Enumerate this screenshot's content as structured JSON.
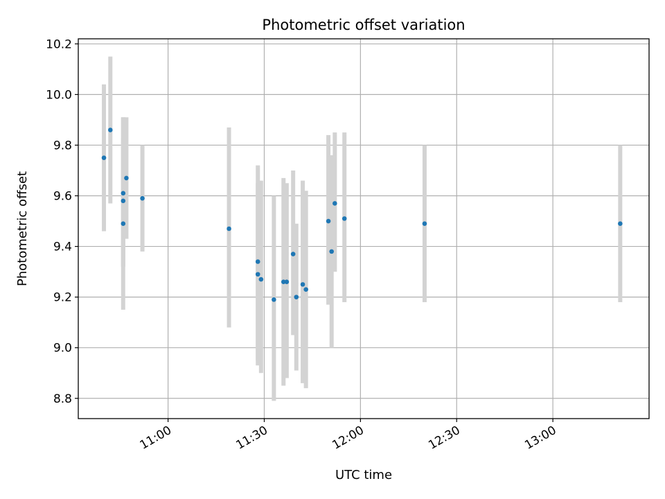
{
  "chart_data": {
    "type": "scatter",
    "title": "Photometric offset variation",
    "xlabel": "UTC time",
    "ylabel": "Photometric offset",
    "x_ticks": [
      "11:00",
      "11:30",
      "12:00",
      "12:30",
      "13:00"
    ],
    "y_ticks": [
      "8.8",
      "9.0",
      "9.2",
      "9.4",
      "9.6",
      "9.8",
      "10.0",
      "10.2"
    ],
    "xlim": [
      "10:32",
      "13:30"
    ],
    "ylim": [
      8.72,
      10.22
    ],
    "grid": true,
    "colors": {
      "point": "#1f77b4",
      "errorbar": "#d3d3d3"
    },
    "points": [
      {
        "x": "10:40",
        "y": 9.75,
        "ylow": 9.46,
        "yhigh": 10.04
      },
      {
        "x": "10:42",
        "y": 9.86,
        "ylow": 9.57,
        "yhigh": 10.15
      },
      {
        "x": "10:46",
        "y": 9.49,
        "ylow": 9.15,
        "yhigh": 9.83
      },
      {
        "x": "10:46",
        "y": 9.61,
        "ylow": 9.32,
        "yhigh": 9.91
      },
      {
        "x": "10:46",
        "y": 9.58,
        "ylow": 9.32,
        "yhigh": 9.91
      },
      {
        "x": "10:47",
        "y": 9.67,
        "ylow": 9.43,
        "yhigh": 9.91
      },
      {
        "x": "10:52",
        "y": 9.59,
        "ylow": 9.38,
        "yhigh": 9.8
      },
      {
        "x": "11:19",
        "y": 9.47,
        "ylow": 9.08,
        "yhigh": 9.87
      },
      {
        "x": "11:28",
        "y": 9.29,
        "ylow": 8.93,
        "yhigh": 9.65
      },
      {
        "x": "11:28",
        "y": 9.34,
        "ylow": 8.95,
        "yhigh": 9.72
      },
      {
        "x": "11:29",
        "y": 9.27,
        "ylow": 8.9,
        "yhigh": 9.66
      },
      {
        "x": "11:33",
        "y": 9.19,
        "ylow": 8.79,
        "yhigh": 9.6
      },
      {
        "x": "11:36",
        "y": 9.26,
        "ylow": 8.85,
        "yhigh": 9.67
      },
      {
        "x": "11:37",
        "y": 9.26,
        "ylow": 8.88,
        "yhigh": 9.65
      },
      {
        "x": "11:39",
        "y": 9.37,
        "ylow": 9.05,
        "yhigh": 9.7
      },
      {
        "x": "11:40",
        "y": 9.2,
        "ylow": 8.91,
        "yhigh": 9.49
      },
      {
        "x": "11:42",
        "y": 9.25,
        "ylow": 8.86,
        "yhigh": 9.66
      },
      {
        "x": "11:43",
        "y": 9.23,
        "ylow": 8.84,
        "yhigh": 9.62
      },
      {
        "x": "11:50",
        "y": 9.5,
        "ylow": 9.17,
        "yhigh": 9.84
      },
      {
        "x": "11:51",
        "y": 9.38,
        "ylow": 9.0,
        "yhigh": 9.76
      },
      {
        "x": "11:52",
        "y": 9.57,
        "ylow": 9.3,
        "yhigh": 9.85
      },
      {
        "x": "11:55",
        "y": 9.51,
        "ylow": 9.18,
        "yhigh": 9.85
      },
      {
        "x": "12:20",
        "y": 9.49,
        "ylow": 9.18,
        "yhigh": 9.8
      },
      {
        "x": "13:21",
        "y": 9.49,
        "ylow": 9.18,
        "yhigh": 9.8
      }
    ]
  }
}
